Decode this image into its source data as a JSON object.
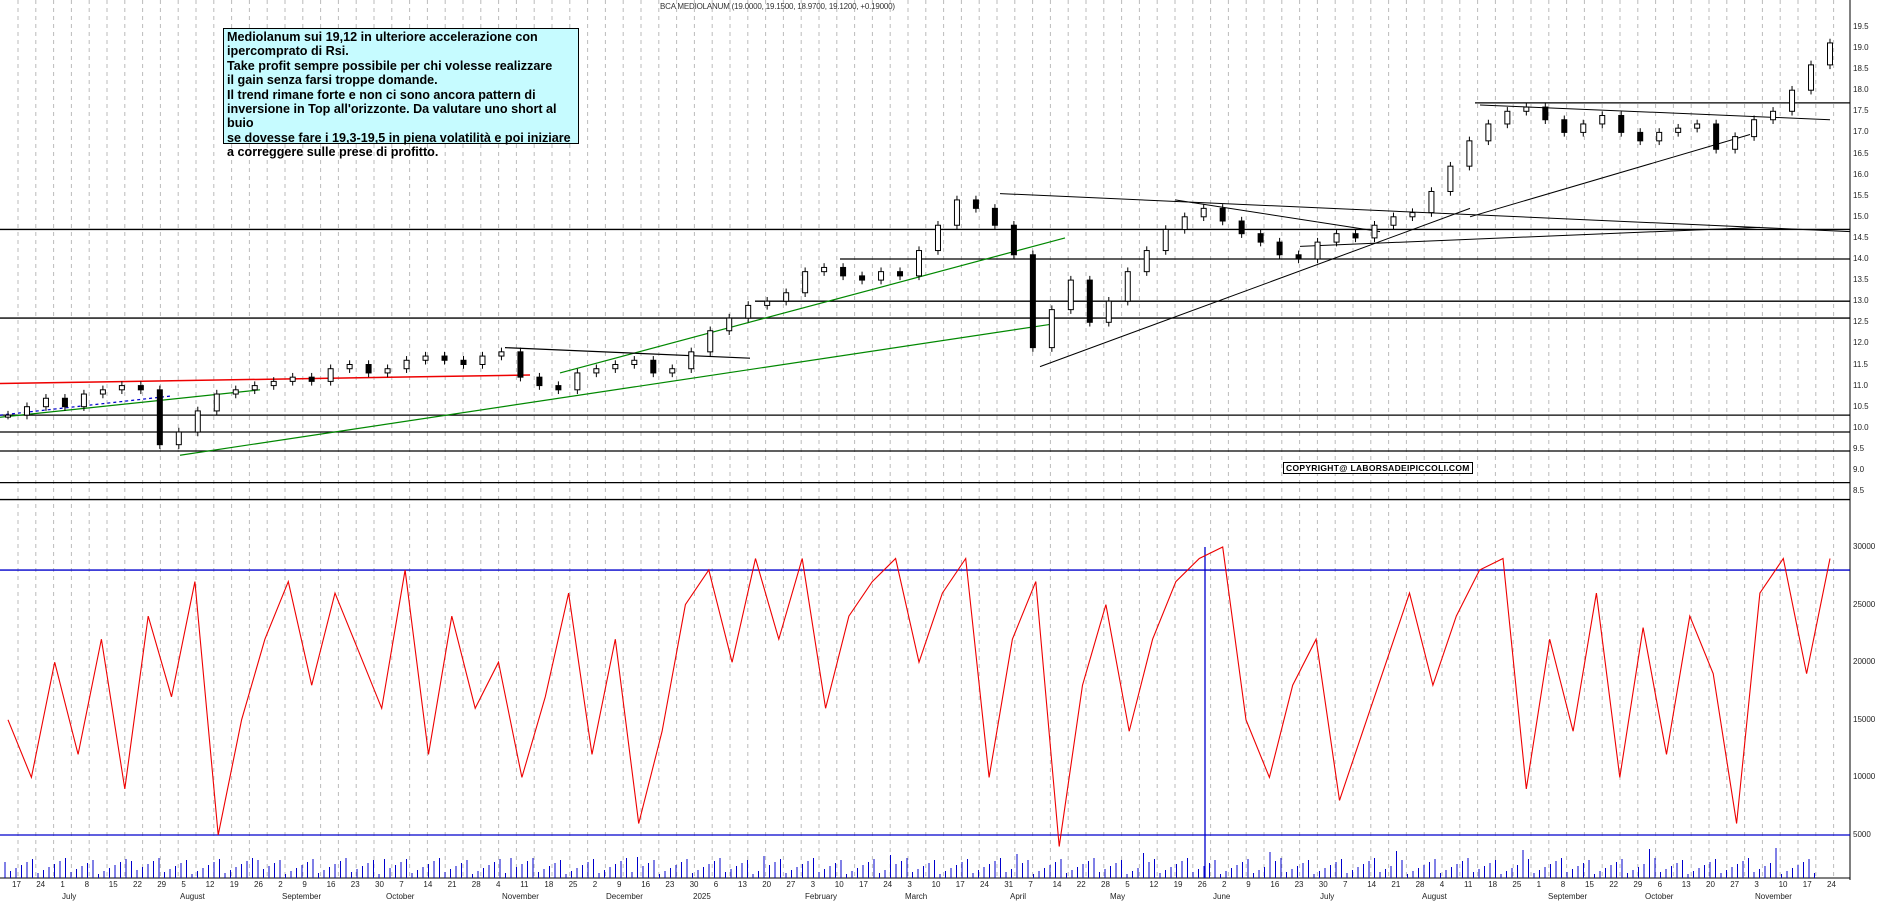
{
  "chart_data": {
    "type": "candlestick",
    "title": "BCA MEDIOLANUM (19.0000, 19.1500, 18.9700, 19.1200, +0.19000)",
    "symbol": "BCA MEDIOLANUM",
    "ohlc_last": {
      "open": 19.0,
      "high": 19.15,
      "low": 18.97,
      "close": 19.12,
      "change": 0.19
    },
    "annotation": "Mediolanum sui 19,12 in ulteriore accelerazione con\nipercomprato di Rsi.\nTake profit sempre possibile per chi volesse realizzare\nil gain senza farsi troppe domande.\nIl trend rimane forte e non ci sono ancora pattern di\ninversione in Top all'orizzonte. Da valutare uno short al buio\nse dovesse fare i 19,3-19,5 in piena volatilità e poi iniziare\na correggere sulle prese di profitto.",
    "copyright": "COPYRIGHT@ LABORSADEIPICCOLI.COM",
    "price_axis": {
      "ticks": [
        8.5,
        9.0,
        9.5,
        10.0,
        10.5,
        11.0,
        11.5,
        12.0,
        12.5,
        13.0,
        13.5,
        14.0,
        14.5,
        15.0,
        15.5,
        16.0,
        16.5,
        17.0,
        17.5,
        18.0,
        18.5,
        19.0,
        19.5
      ],
      "ylim": [
        8.3,
        19.6
      ]
    },
    "indicator_axis": {
      "ticks": [
        5000,
        10000,
        15000,
        20000,
        25000,
        30000
      ],
      "upper_level": 28000,
      "lower_level": 5000
    },
    "volume_axis_label": "10000",
    "x_days": [
      "17",
      "24",
      "1",
      "8",
      "15",
      "22",
      "29",
      "5",
      "12",
      "19",
      "26",
      "2",
      "9",
      "16",
      "23",
      "30",
      "7",
      "14",
      "21",
      "28",
      "4",
      "11",
      "18",
      "25",
      "2",
      "9",
      "16",
      "23",
      "30",
      "6",
      "13",
      "20",
      "27",
      "3",
      "10",
      "17",
      "24",
      "3",
      "10",
      "17",
      "24",
      "31",
      "7",
      "14",
      "22",
      "28",
      "5",
      "12",
      "19",
      "26",
      "2",
      "9",
      "16",
      "23",
      "30",
      "7",
      "14",
      "21",
      "28",
      "4",
      "11",
      "18",
      "25",
      "1",
      "8",
      "15",
      "22",
      "29",
      "6",
      "13",
      "20",
      "27",
      "3",
      "10",
      "17",
      "24"
    ],
    "x_months": [
      "July",
      "August",
      "September",
      "October",
      "November",
      "December",
      "2025",
      "February",
      "March",
      "April",
      "May",
      "June",
      "July",
      "August",
      "September",
      "October",
      "November"
    ],
    "horizontal_levels": [
      8.3,
      8.7,
      9.45,
      9.9,
      10.3,
      12.6,
      13.0,
      14.0,
      14.7,
      17.7
    ],
    "close_path": [
      10.3,
      10.5,
      10.7,
      10.5,
      10.8,
      10.9,
      11.0,
      10.9,
      9.6,
      9.9,
      10.4,
      10.8,
      10.9,
      11.0,
      11.1,
      11.2,
      11.1,
      11.4,
      11.5,
      11.3,
      11.4,
      11.6,
      11.7,
      11.6,
      11.5,
      11.7,
      11.8,
      11.2,
      11.0,
      10.9,
      11.3,
      11.4,
      11.5,
      11.6,
      11.3,
      11.4,
      11.8,
      12.3,
      12.6,
      12.9,
      13.0,
      13.2,
      13.7,
      13.8,
      13.6,
      13.5,
      13.7,
      13.6,
      14.2,
      14.8,
      15.4,
      15.2,
      14.8,
      14.1,
      11.9,
      12.8,
      13.5,
      12.5,
      13.0,
      13.7,
      14.2,
      14.7,
      15.0,
      15.2,
      14.9,
      14.6,
      14.4,
      14.1,
      14.0,
      14.4,
      14.6,
      14.5,
      14.8,
      15.0,
      15.1,
      15.6,
      16.2,
      16.8,
      17.2,
      17.5,
      17.6,
      17.3,
      17.0,
      17.2,
      17.4,
      17.0,
      16.8,
      17.0,
      17.1,
      17.2,
      16.6,
      16.9,
      17.3,
      17.5,
      18.0,
      18.6,
      19.12
    ],
    "rsi_path": [
      15000,
      10000,
      20000,
      12000,
      22000,
      9000,
      24000,
      17000,
      27000,
      5000,
      15000,
      22000,
      27000,
      18000,
      26000,
      21000,
      16000,
      28000,
      12000,
      24000,
      16000,
      20000,
      10000,
      17000,
      26000,
      12000,
      22000,
      6000,
      14000,
      25000,
      28000,
      20000,
      29000,
      22000,
      29000,
      16000,
      24000,
      27000,
      29000,
      20000,
      26000,
      29000,
      10000,
      22000,
      27000,
      4000,
      18000,
      25000,
      14000,
      22000,
      27000,
      29000,
      30000,
      15000,
      10000,
      18000,
      22000,
      8000,
      14000,
      20000,
      26000,
      18000,
      24000,
      28000,
      29000,
      9000,
      22000,
      14000,
      26000,
      10000,
      23000,
      12000,
      24000,
      19000,
      6000,
      26000,
      29000,
      19000,
      29000
    ]
  }
}
